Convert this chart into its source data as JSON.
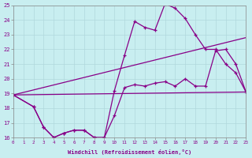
{
  "xlabel": "Windchill (Refroidissement éolien,°C)",
  "bg_color": "#c8eef0",
  "line_color": "#880088",
  "grid_color": "#b0d8dc",
  "xmin": 0,
  "xmax": 23,
  "ymin": 16,
  "ymax": 25,
  "line_flat": {
    "x": [
      0,
      23
    ],
    "y": [
      18.9,
      19.1
    ],
    "markers": false
  },
  "line_diag": {
    "x": [
      0,
      23
    ],
    "y": [
      18.9,
      22.8
    ],
    "markers": false
  },
  "line_mid": {
    "x": [
      0,
      2,
      3,
      4,
      5,
      6,
      7,
      8,
      9,
      10,
      11,
      12,
      13,
      14,
      15,
      16,
      17,
      18,
      19,
      20,
      21,
      22,
      23
    ],
    "y": [
      18.9,
      18.1,
      16.7,
      16.0,
      16.3,
      16.5,
      16.5,
      16.0,
      16.0,
      17.5,
      19.4,
      19.6,
      19.5,
      19.7,
      19.8,
      19.5,
      20.0,
      19.5,
      19.5,
      21.9,
      22.0,
      21.0,
      19.1
    ]
  },
  "line_top": {
    "x": [
      0,
      2,
      3,
      4,
      5,
      6,
      7,
      8,
      9,
      10,
      11,
      12,
      13,
      14,
      15,
      16,
      17,
      18,
      19,
      20,
      21,
      22,
      23
    ],
    "y": [
      18.9,
      18.1,
      16.7,
      16.0,
      16.3,
      16.5,
      16.5,
      16.0,
      16.0,
      19.2,
      21.6,
      23.9,
      23.5,
      23.3,
      25.1,
      24.8,
      24.1,
      23.0,
      22.0,
      22.0,
      21.0,
      20.4,
      19.1
    ]
  }
}
